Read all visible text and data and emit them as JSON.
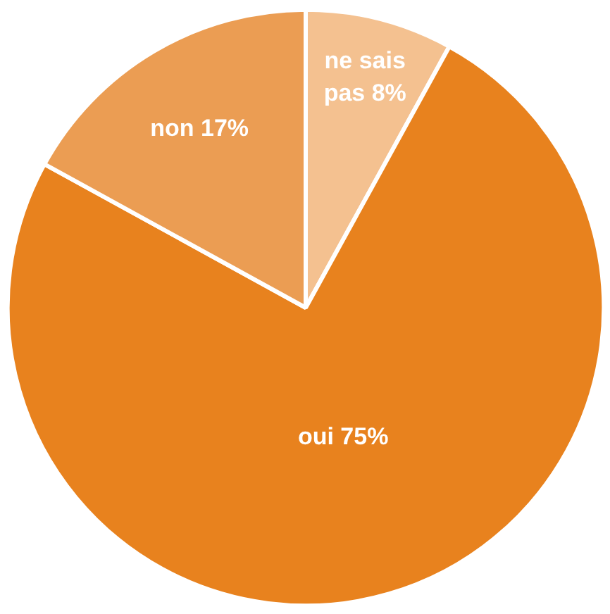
{
  "chart_data": {
    "type": "pie",
    "categories": [
      "ne sais pas",
      "oui",
      "non"
    ],
    "values": [
      8,
      75,
      17
    ],
    "colors": [
      "#f4c190",
      "#e8821e",
      "#eb9d53"
    ],
    "value_labels": [
      "8%",
      "75%",
      "17%"
    ]
  }
}
